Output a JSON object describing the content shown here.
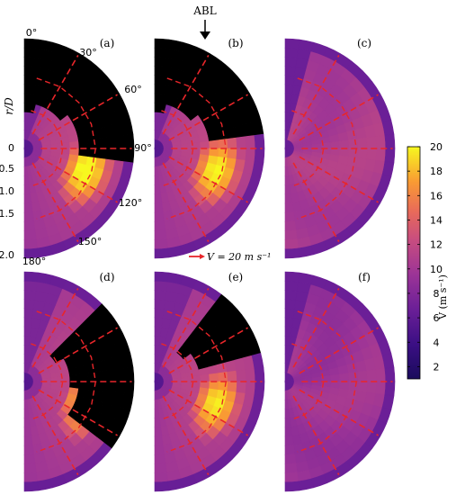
{
  "chart_data": {
    "type": "heatmap",
    "annotation_top": "ABL",
    "panels": [
      {
        "label": "(a)",
        "blocked": {
          "from": 0,
          "to": 95
        },
        "peak": 1.0,
        "dark_floor": 0.08
      },
      {
        "label": "(b)",
        "blocked": {
          "from": 0,
          "to": 80
        },
        "peak": 0.97,
        "dark_floor": 0.08
      },
      {
        "label": "(c)",
        "blocked": null,
        "peak": 0.55,
        "dark_floor": 0.45
      },
      {
        "label": "(d)",
        "blocked": {
          "from": 45,
          "to": 130
        },
        "peak": 0.97,
        "dark_floor": 0.08
      },
      {
        "label": "(e)",
        "blocked": {
          "from": 40,
          "to": 75
        },
        "peak": 0.95,
        "dark_floor": 0.08
      },
      {
        "label": "(f)",
        "blocked": null,
        "peak": 0.5,
        "dark_floor": 0.4
      }
    ],
    "angle_labels": [
      "0°",
      "30°",
      "60°",
      "90°",
      "120°",
      "150°",
      "180°"
    ],
    "ylabel": "r/D",
    "y_tick_labels": [
      "0",
      "0.5",
      "1.0",
      "1.5",
      "2.0"
    ],
    "vector_legend": "V = 20 m s⁻¹",
    "colorbar": {
      "label": "V (m s⁻¹)",
      "range": [
        1,
        20
      ],
      "ticks": [
        "20",
        "18",
        "16",
        "14",
        "12",
        "10",
        "8",
        "6",
        "4",
        "2"
      ]
    },
    "colors": {
      "accent_vectors": "#e8262a",
      "blocked": "#000000"
    }
  }
}
